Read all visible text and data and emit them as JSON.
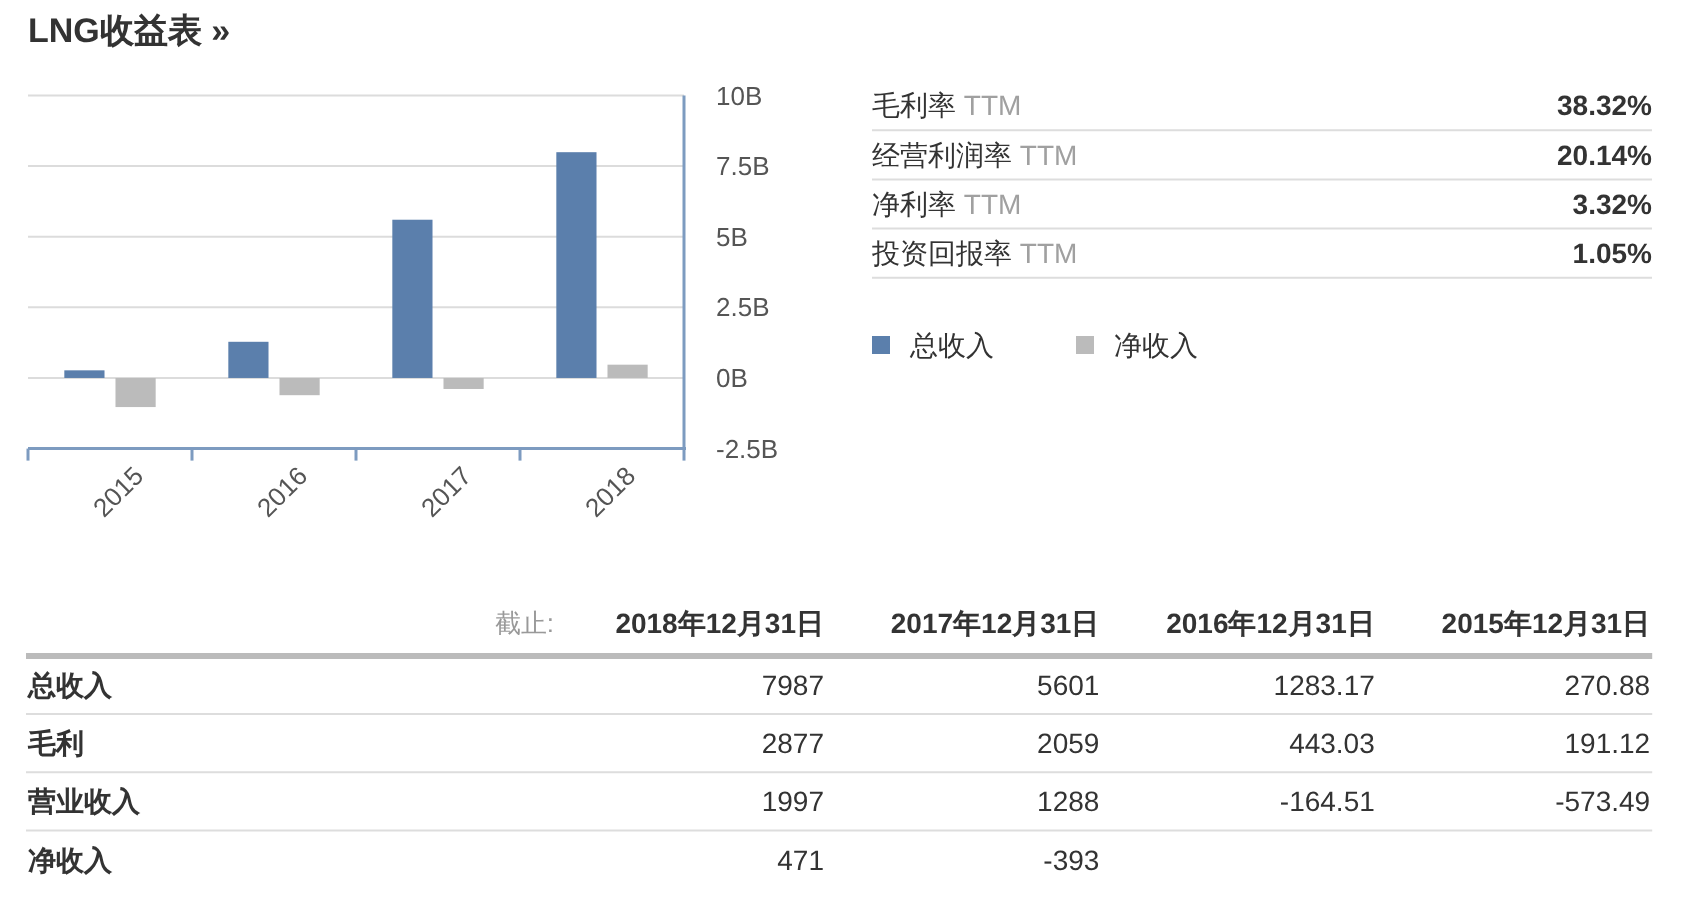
{
  "chart_data": [
    {
      "type": "bar",
      "title": "LNG收益表 »",
      "categories": [
        "2015",
        "2016",
        "2017",
        "2018"
      ],
      "series": [
        {
          "name": "总收入",
          "color": "#5b7fac",
          "values": [
            0.27,
            1.28,
            5.6,
            7.99
          ]
        },
        {
          "name": "净收入",
          "color": "#bbbbbb",
          "values": [
            -1.03,
            -0.61,
            -0.39,
            0.47
          ]
        }
      ],
      "ylim": [
        -2.5,
        10
      ],
      "yticks": [
        {
          "value": 10,
          "label": "10B"
        },
        {
          "value": 7.5,
          "label": "7.5B"
        },
        {
          "value": 5,
          "label": "5B"
        },
        {
          "value": 2.5,
          "label": "2.5B"
        },
        {
          "value": 0,
          "label": "0B"
        },
        {
          "value": -2.5,
          "label": "-2.5B"
        }
      ],
      "grid": "y",
      "legend": "right"
    },
    {
      "type": "other",
      "categories": [
        "毛利率 TTM",
        "经营利润率 TTM",
        "净利率 TTM",
        "投资回报率 TTM"
      ],
      "value_labels": [
        "38.32%",
        "20.14%",
        "3.32%",
        "1.05%"
      ]
    },
    {
      "type": "other",
      "categories": [
        "2018年12月31日",
        "2017年12月31日",
        "2016年12月31日",
        "2015年12月31日"
      ],
      "series": [
        {
          "name": "总收入",
          "values": [
            7987,
            5601,
            1283.17,
            270.88
          ]
        },
        {
          "name": "毛利",
          "values": [
            2877,
            2059,
            443.03,
            191.12
          ]
        },
        {
          "name": "营业收入",
          "values": [
            1997,
            1288,
            -164.51,
            -573.49
          ]
        },
        {
          "name": "净收入",
          "values": [
            471,
            -393,
            null,
            null
          ]
        }
      ],
      "data_labels": true,
      "annotations": [
        "截止:"
      ]
    }
  ]
}
